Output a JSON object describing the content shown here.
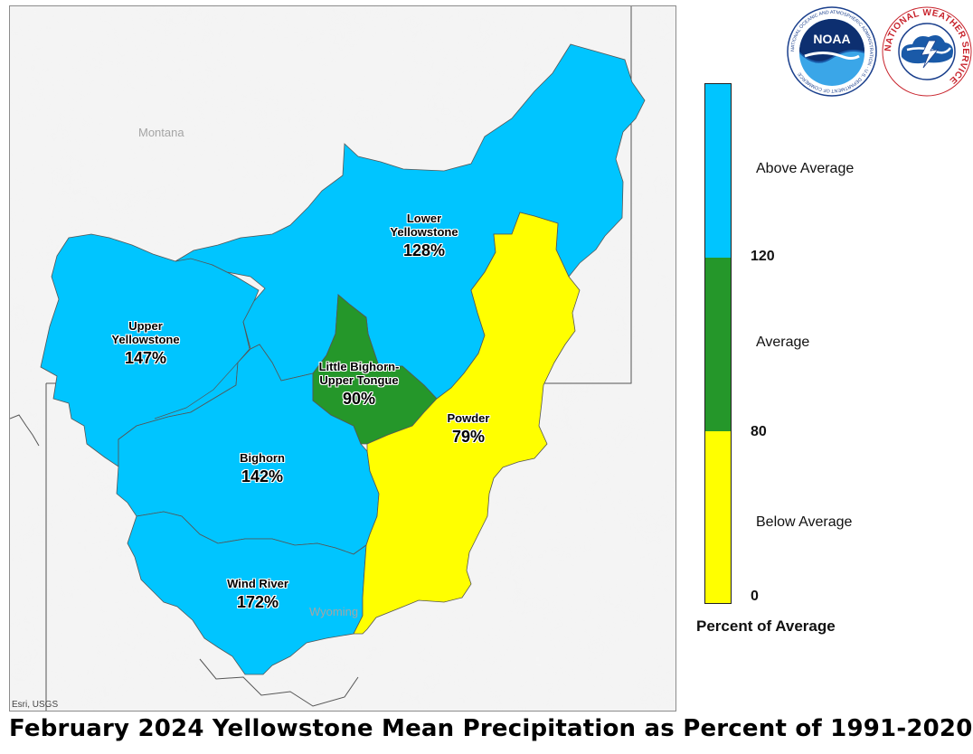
{
  "title": "February 2024 Yellowstone Mean Precipitation as Percent of 1991-2020",
  "map": {
    "attribution": "Esri, USGS",
    "states": [
      {
        "name": "Montana"
      },
      {
        "name": "Wyoming"
      }
    ],
    "basins": [
      {
        "name": "Upper Yellowstone",
        "percent": "147%",
        "category": "Above Average",
        "color": "#00c5ff"
      },
      {
        "name": "Lower Yellowstone",
        "percent": "128%",
        "category": "Above Average",
        "color": "#00c5ff"
      },
      {
        "name": "Bighorn",
        "percent": "142%",
        "category": "Above Average",
        "color": "#00c5ff"
      },
      {
        "name": "Wind River",
        "percent": "172%",
        "category": "Above Average",
        "color": "#00c5ff"
      },
      {
        "name": "Little Bighorn-Upper Tongue",
        "percent": "90%",
        "category": "Average",
        "color": "#25972a"
      },
      {
        "name": "Powder",
        "percent": "79%",
        "category": "Below Average",
        "color": "#ffff00"
      }
    ]
  },
  "legend": {
    "title": "Percent of Average",
    "categories": [
      {
        "label": "Above Average",
        "color": "#00c5ff"
      },
      {
        "label": "Average",
        "color": "#25972a"
      },
      {
        "label": "Below Average",
        "color": "#ffff00"
      }
    ],
    "breaks": [
      "120",
      "80",
      "0"
    ]
  },
  "logos": [
    {
      "name": "NOAA",
      "text": "NOAA",
      "ring_text": "NATIONAL OCEANIC AND ATMOSPHERIC ADMINISTRATION · U.S. DEPARTMENT OF COMMERCE"
    },
    {
      "name": "NWS",
      "ring_text": "NATIONAL WEATHER SERVICE"
    }
  ]
}
